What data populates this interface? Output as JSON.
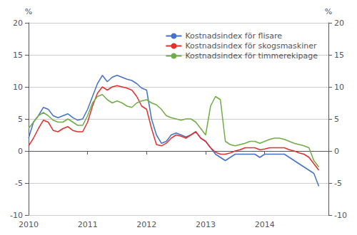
{
  "chart_data": {
    "type": "line",
    "ylabel": "%",
    "y2label": "%",
    "x": [
      2010,
      2010.0833333333333,
      2010.1666666666667,
      2010.25,
      2010.3333333333333,
      2010.4166666666667,
      2010.5,
      2010.5833333333333,
      2010.6666666666667,
      2010.75,
      2010.8333333333333,
      2010.9166666666667,
      2011,
      2011.0833333333333,
      2011.1666666666667,
      2011.25,
      2011.3333333333333,
      2011.4166666666667,
      2011.5,
      2011.5833333333333,
      2011.6666666666667,
      2011.75,
      2011.8333333333333,
      2011.9166666666667,
      2012,
      2012.0833333333333,
      2012.1666666666667,
      2012.25,
      2012.3333333333333,
      2012.4166666666667,
      2012.5,
      2012.5833333333333,
      2012.6666666666667,
      2012.75,
      2012.8333333333333,
      2012.9166666666667,
      2013,
      2013.0833333333333,
      2013.1666666666667,
      2013.25,
      2013.3333333333333,
      2013.4166666666667,
      2013.5,
      2013.5833333333333,
      2013.6666666666667,
      2013.75,
      2013.8333333333333,
      2013.9166666666667,
      2014,
      2014.0833333333333,
      2014.1666666666667,
      2014.25,
      2014.3333333333333,
      2014.4166666666667,
      2014.5,
      2014.5833333333333,
      2014.6666666666667,
      2014.75,
      2014.8333333333333,
      2014.9166666666667
    ],
    "series": [
      {
        "name": "Kostnadsindex för flisare",
        "color": "#4472c4",
        "values": [
          2.0,
          4.5,
          5.5,
          6.8,
          6.5,
          5.5,
          5.2,
          5.5,
          5.8,
          5.2,
          4.8,
          5.0,
          6.5,
          8.5,
          10.5,
          11.8,
          10.8,
          11.5,
          11.8,
          11.5,
          11.2,
          11.0,
          10.5,
          9.8,
          9.5,
          5.0,
          2.5,
          1.2,
          1.5,
          2.5,
          2.8,
          2.5,
          2.2,
          2.5,
          3.0,
          2.0,
          1.5,
          0.5,
          -0.5,
          -1.0,
          -1.5,
          -1.0,
          -0.5,
          -0.5,
          -0.5,
          -0.5,
          -0.5,
          -1.0,
          -0.5,
          -0.5,
          -0.5,
          -0.5,
          -0.5,
          -1.0,
          -1.5,
          -2.0,
          -2.5,
          -3.0,
          -3.5,
          -5.5
        ]
      },
      {
        "name": "Kostnadsindex för skogsmaskiner",
        "color": "#e03030",
        "values": [
          0.8,
          2.0,
          3.5,
          4.8,
          4.5,
          3.2,
          3.0,
          3.5,
          3.8,
          3.2,
          3.0,
          3.0,
          4.5,
          7.0,
          9.0,
          10.0,
          9.5,
          10.0,
          10.2,
          10.0,
          9.8,
          9.5,
          8.5,
          7.0,
          6.5,
          3.5,
          1.0,
          0.8,
          1.2,
          2.0,
          2.5,
          2.3,
          2.0,
          2.5,
          3.0,
          2.0,
          1.5,
          0.5,
          -0.2,
          -0.5,
          -0.5,
          -0.3,
          0.0,
          0.2,
          0.5,
          0.5,
          0.5,
          0.2,
          0.3,
          0.5,
          0.5,
          0.5,
          0.5,
          0.2,
          0.0,
          -0.3,
          -0.5,
          -1.0,
          -2.0,
          -3.0
        ]
      },
      {
        "name": "Kostnadsindex för timmerekipage",
        "color": "#70ad47",
        "values": [
          3.5,
          4.5,
          5.5,
          6.0,
          5.5,
          4.8,
          4.5,
          4.5,
          5.0,
          4.5,
          4.0,
          4.0,
          5.5,
          7.5,
          8.5,
          8.8,
          8.0,
          7.5,
          7.8,
          7.5,
          7.0,
          6.8,
          7.5,
          7.8,
          8.0,
          7.5,
          7.2,
          6.5,
          5.5,
          5.2,
          5.0,
          4.8,
          5.0,
          5.0,
          4.5,
          3.5,
          2.5,
          7.0,
          8.5,
          8.0,
          1.5,
          1.0,
          0.8,
          1.0,
          1.2,
          1.5,
          1.5,
          1.2,
          1.5,
          1.8,
          2.0,
          2.0,
          1.8,
          1.5,
          1.2,
          1.0,
          0.8,
          0.5,
          -1.5,
          -2.5
        ]
      }
    ],
    "xlim": [
      2010.0,
      2015.08
    ],
    "xticks": [
      2010,
      2011,
      2012,
      2013,
      2014
    ],
    "ylim": [
      -10,
      20
    ],
    "yticks": [
      -10,
      -5,
      0,
      5,
      10,
      15,
      20
    ],
    "y2lim": [
      -10,
      20
    ],
    "y2ticks": [
      -10,
      -5,
      0,
      5,
      10,
      15,
      20
    ],
    "grid": true,
    "legend": "upper right"
  }
}
